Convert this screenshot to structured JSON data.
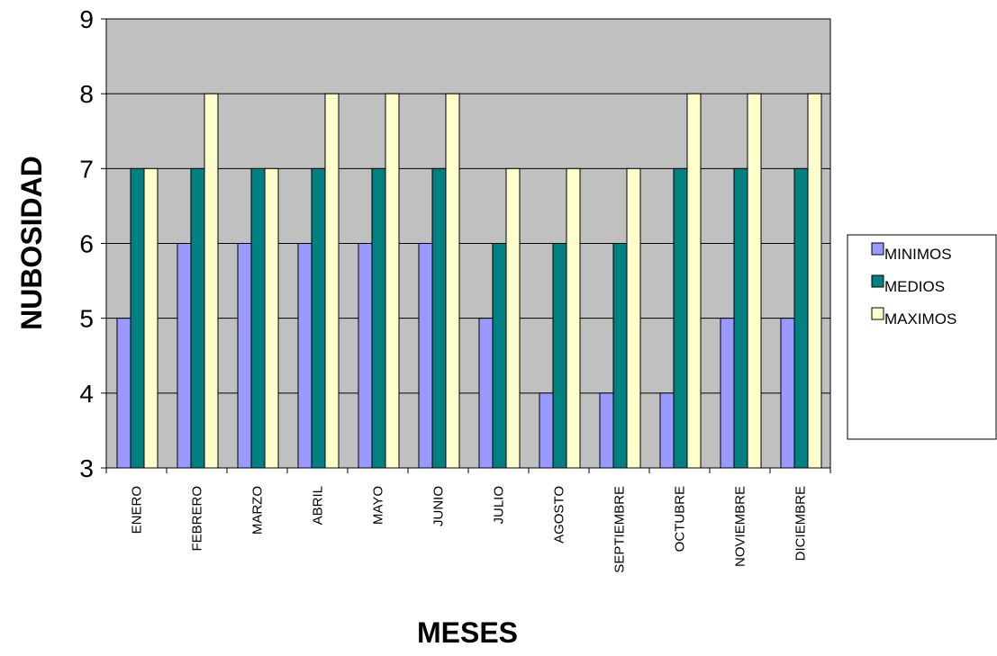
{
  "chart_data": {
    "type": "bar",
    "title": "",
    "xlabel": "MESES",
    "ylabel": "NUBOSIDAD",
    "ylim": [
      3,
      9
    ],
    "yticks": [
      3,
      4,
      5,
      6,
      7,
      8,
      9
    ],
    "grid": true,
    "legend_position": "right",
    "plot_background": "#c0c0c0",
    "categories": [
      "ENERO",
      "FEBRERO",
      "MARZO",
      "ABRIL",
      "MAYO",
      "JUNIO",
      "JULIO",
      "AGOSTO",
      "SEPTIEMBRE",
      "OCTUBRE",
      "NOVIEMBRE",
      "DICIEMBRE"
    ],
    "series": [
      {
        "name": "MINIMOS",
        "color": "#9999ff",
        "values": [
          5,
          6,
          6,
          6,
          6,
          6,
          5,
          4,
          4,
          4,
          5,
          5
        ]
      },
      {
        "name": "MEDIOS",
        "color": "#008080",
        "values": [
          7,
          7,
          7,
          7,
          7,
          7,
          6,
          6,
          6,
          7,
          7,
          7
        ]
      },
      {
        "name": "MAXIMOS",
        "color": "#ffffcc",
        "values": [
          7,
          8,
          7,
          8,
          8,
          8,
          7,
          7,
          7,
          8,
          8,
          8
        ]
      }
    ]
  }
}
